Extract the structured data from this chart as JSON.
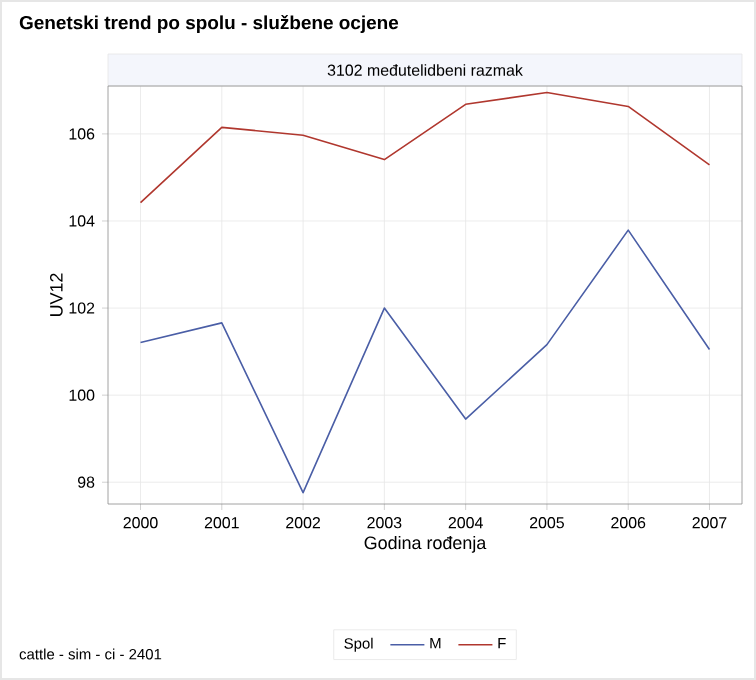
{
  "chart_data": {
    "type": "line",
    "title": "Genetski trend po spolu - službene ocjene",
    "subtitle": "3102 međutelidbeni razmak",
    "xlabel": "Godina rođenja",
    "ylabel": "UV12",
    "legend_title": "Spol",
    "x": [
      2000,
      2001,
      2002,
      2003,
      2004,
      2005,
      2006,
      2007
    ],
    "series": [
      {
        "name": "M",
        "color": "#4a5ea6",
        "values": [
          101.21,
          101.66,
          97.76,
          102.0,
          99.45,
          101.16,
          103.79,
          101.05
        ]
      },
      {
        "name": "F",
        "color": "#b0372e",
        "values": [
          104.42,
          106.15,
          105.97,
          105.41,
          106.68,
          106.95,
          106.63,
          105.29
        ]
      }
    ],
    "xlim": [
      1999.6,
      2007.4
    ],
    "ylim": [
      97.5,
      107.1
    ],
    "xticks": [
      2000,
      2001,
      2002,
      2003,
      2004,
      2005,
      2006,
      2007
    ],
    "yticks": [
      98,
      100,
      102,
      104,
      106
    ],
    "grid": true,
    "legend": "bottom",
    "marker": "none",
    "line_style": "solid",
    "annotations": [
      "cattle - sim - ci - 2401"
    ]
  }
}
